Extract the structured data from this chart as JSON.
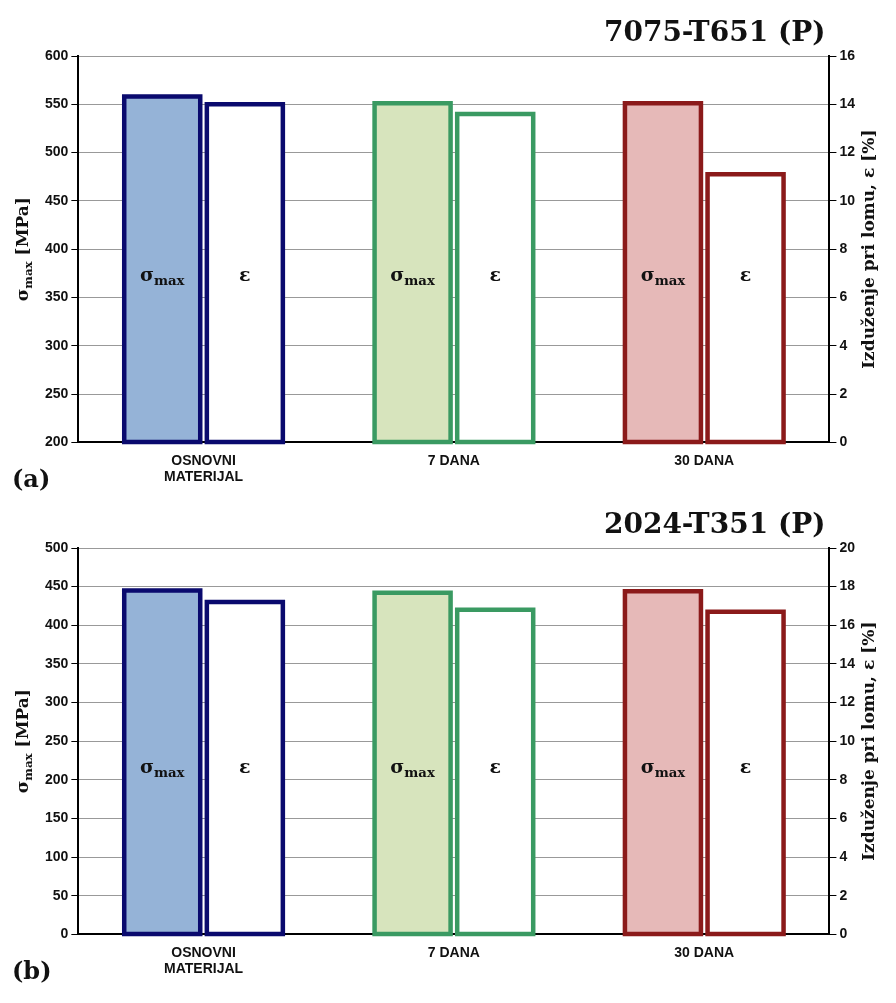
{
  "chart_data": [
    {
      "type": "bar",
      "title": "7075-T651 (P)",
      "ylabel": "σ$_{max}$ [MPa]",
      "y2label": "Izduženje pri lomu, ε [%]",
      "annotations": [
        "(a)"
      ],
      "categories": [
        "OSNOVNI\nMATERIJAL",
        "7 DANA",
        "30 DANA"
      ],
      "series": [
        {
          "name": "σ$_{max}$",
          "colors": [
            "#95b3d7",
            "#d7e4bd",
            "#e6b9b8"
          ],
          "values": [
            558,
            551,
            551
          ]
        },
        {
          "name": "ε",
          "axis": "y2",
          "colors": [
            "#0a0a6e",
            "#3a9a62",
            "#8b1a1a"
          ],
          "values": [
            14.0,
            13.6,
            11.1
          ]
        }
      ],
      "ylim": [
        200,
        600
      ],
      "yticks": [
        200,
        250,
        300,
        350,
        400,
        450,
        500,
        550,
        600
      ],
      "y2lim": [
        0,
        16
      ],
      "y2ticks": [
        0,
        2,
        4,
        6,
        8,
        10,
        12,
        14,
        16
      ],
      "grid": "y",
      "legend": false
    },
    {
      "type": "bar",
      "title": "2024-T351 (P)",
      "ylabel": "σ$_{max}$ [MPa]",
      "y2label": "Izduženje pri lomu, ε [%]",
      "annotations": [
        "(b)"
      ],
      "categories": [
        "OSNOVNI\nMATERIJAL",
        "7 DANA",
        "30 DANA"
      ],
      "series": [
        {
          "name": "σ$_{max}$",
          "colors": [
            "#95b3d7",
            "#d7e4bd",
            "#e6b9b8"
          ],
          "values": [
            445,
            442,
            444
          ]
        },
        {
          "name": "ε",
          "axis": "y2",
          "colors": [
            "#0a0a6e",
            "#3a9a62",
            "#8b1a1a"
          ],
          "values": [
            17.2,
            16.8,
            16.7
          ]
        }
      ],
      "ylim": [
        0,
        500
      ],
      "yticks": [
        0,
        50,
        100,
        150,
        200,
        250,
        300,
        350,
        400,
        450,
        500
      ],
      "y2lim": [
        0,
        20
      ],
      "y2ticks": [
        0,
        2,
        4,
        6,
        8,
        10,
        12,
        14,
        16,
        18,
        20
      ],
      "grid": "y",
      "legend": false
    }
  ]
}
